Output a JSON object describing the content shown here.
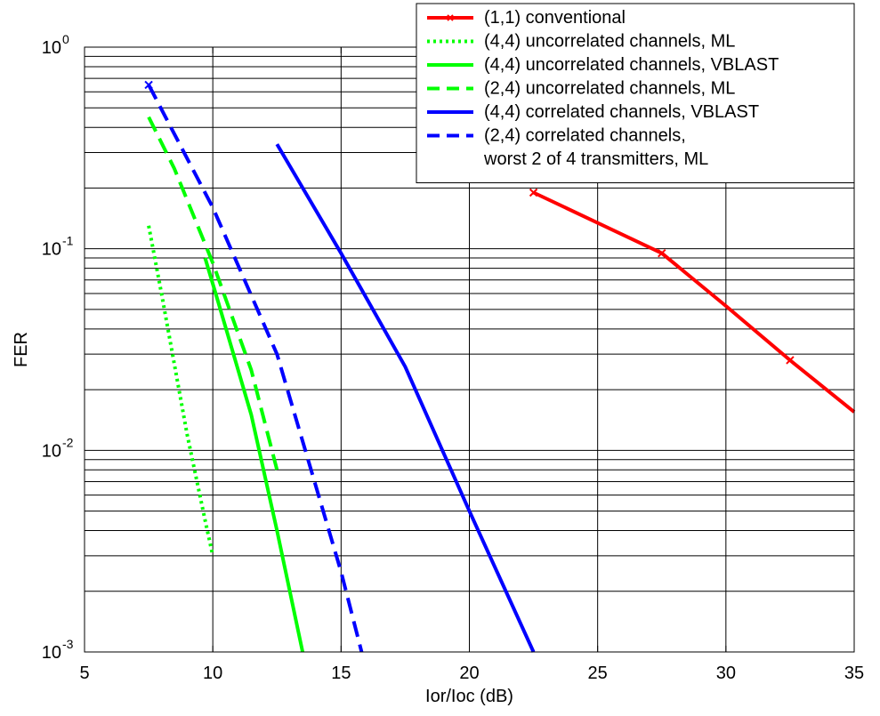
{
  "chart_data": {
    "type": "line",
    "title": "",
    "xlabel": "Ior/Ioc (dB)",
    "ylabel": "FER",
    "xlim": [
      5,
      35
    ],
    "ylim": [
      0.001,
      1
    ],
    "yscale": "log",
    "grid": true,
    "legend_position": "top-right",
    "x_ticks": [
      5,
      10,
      15,
      20,
      25,
      30,
      35
    ],
    "y_ticks": [
      {
        "base": "10",
        "exp": "-3",
        "value": 0.001
      },
      {
        "base": "10",
        "exp": "-2",
        "value": 0.01
      },
      {
        "base": "10",
        "exp": "-1",
        "value": 0.1
      },
      {
        "base": "10",
        "exp": "0",
        "value": 1
      }
    ],
    "series": [
      {
        "name": "(1,1) conventional",
        "color": "#ff0000",
        "style": "solid",
        "marker": "x",
        "x": [
          22.5,
          27.5,
          30.0,
          32.5,
          35.0
        ],
        "y": [
          0.19,
          0.095,
          0.052,
          0.028,
          0.0155
        ],
        "marker_x": [
          22.5,
          27.5,
          32.5
        ],
        "marker_y": [
          0.19,
          0.095,
          0.028
        ]
      },
      {
        "name": "(4,4) uncorrelated channels, ML",
        "color": "#00ff00",
        "style": "dotted",
        "x": [
          7.5,
          8.0,
          9.0,
          9.7,
          10.0
        ],
        "y": [
          0.13,
          0.06,
          0.012,
          0.0045,
          0.003
        ]
      },
      {
        "name": "(4,4) uncorrelated channels, VBLAST",
        "color": "#00ff00",
        "style": "solid",
        "x": [
          9.7,
          10.2,
          11.5,
          12.5,
          13.5
        ],
        "y": [
          0.09,
          0.055,
          0.015,
          0.004,
          0.001
        ]
      },
      {
        "name": "(2,4) uncorrelated channels, ML",
        "color": "#00ff00",
        "style": "dashed",
        "x": [
          7.5,
          8.5,
          10.0,
          11.5,
          12.5
        ],
        "y": [
          0.45,
          0.25,
          0.085,
          0.025,
          0.008
        ]
      },
      {
        "name": "(4,4) correlated channels, VBLAST",
        "color": "#0000ff",
        "style": "solid",
        "x": [
          12.5,
          15.0,
          17.5,
          20.0,
          22.5
        ],
        "y": [
          0.33,
          0.095,
          0.026,
          0.005,
          0.001
        ]
      },
      {
        "name": "(2,4) correlated channels,\nworst 2 of 4 transmitters, ML",
        "legend_lines": [
          "(2,4) correlated channels,",
          "worst 2 of 4 transmitters, ML"
        ],
        "color": "#0000ff",
        "style": "dashed",
        "marker": "x",
        "x": [
          7.5,
          10.0,
          12.5,
          15.0,
          15.8
        ],
        "y": [
          0.65,
          0.16,
          0.03,
          0.0025,
          0.001
        ],
        "marker_x": [
          7.5
        ],
        "marker_y": [
          0.65
        ]
      }
    ]
  }
}
